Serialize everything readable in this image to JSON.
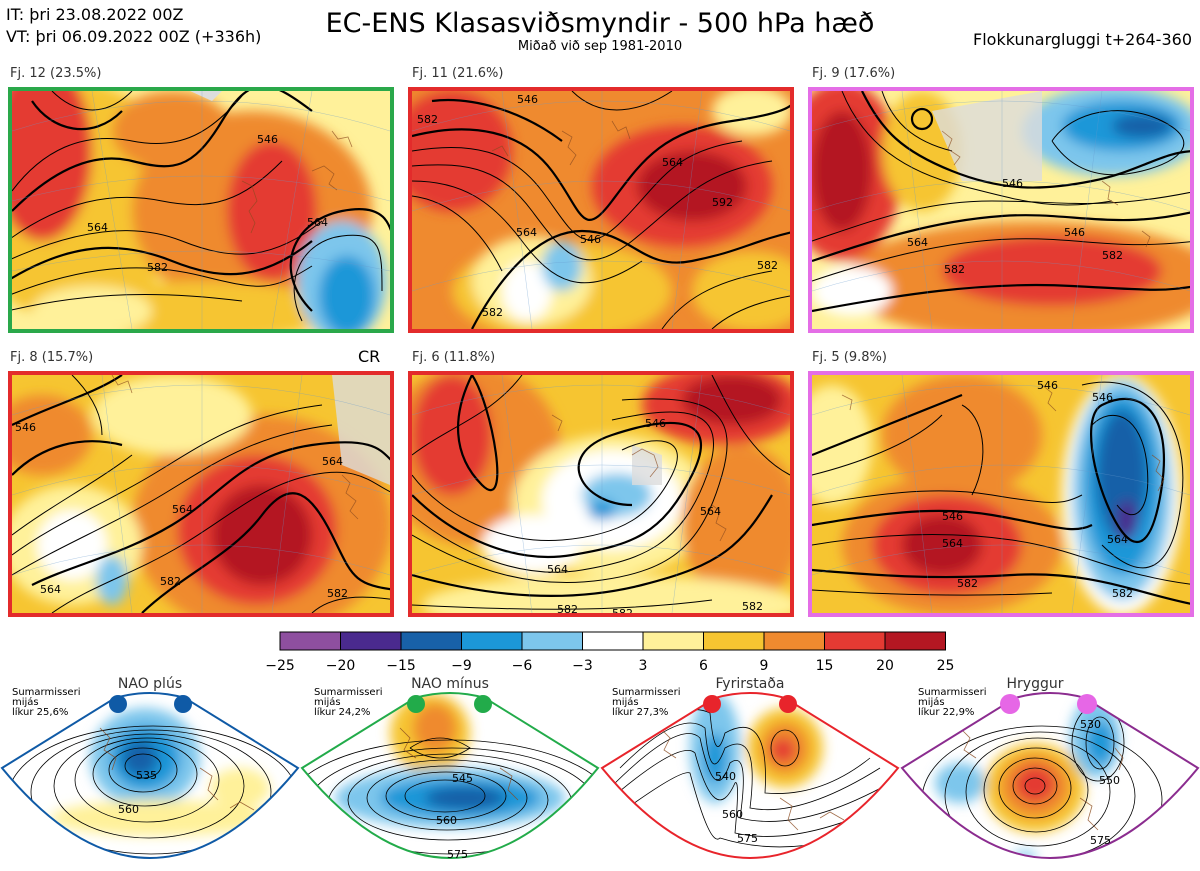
{
  "header": {
    "it_line": "IT: þri 23.08.2022 00Z",
    "vt_line": "VT: þri 06.09.2022 00Z  (+336h)",
    "title": "EC-ENS Klasasviðsmyndir - 500 hPa hæð",
    "subtitle": "Miðað við sep 1981-2010",
    "window": "Flokkunargluggi t+264-360"
  },
  "panels": [
    {
      "label": "Fj. 12 (23.5%)",
      "frame_color": "#2aa84a",
      "contours": [
        "546",
        "564",
        "564",
        "582"
      ]
    },
    {
      "label": "Fj. 11 (21.6%)",
      "frame_color": "#e32b2b",
      "contours": [
        "546",
        "564",
        "564",
        "582",
        "546",
        "582",
        "592",
        "582"
      ]
    },
    {
      "label": "Fj. 9 (17.6%)",
      "frame_color": "#e46ee6",
      "contours": [
        "546",
        "564",
        "582",
        "582",
        "546"
      ]
    },
    {
      "label": "Fj. 8 (15.7%)",
      "frame_color": "#e32b2b",
      "contours": [
        "564",
        "564",
        "582",
        "582",
        "564",
        "546"
      ],
      "extra": "CR"
    },
    {
      "label": "Fj. 6 (11.8%)",
      "frame_color": "#e32b2b",
      "contours": [
        "546",
        "564",
        "564",
        "582",
        "582",
        "582"
      ]
    },
    {
      "label": "Fj. 5 (9.8%)",
      "frame_color": "#e46ee6",
      "contours": [
        "546",
        "564",
        "582",
        "546",
        "564",
        "582",
        "546"
      ]
    }
  ],
  "colorbar": {
    "colors": [
      "#8e4f9f",
      "#4a2a8e",
      "#1861a8",
      "#1c97d8",
      "#7dc6ec",
      "#ffffff",
      "#fff19a",
      "#f6c531",
      "#ef8a2f",
      "#e43a33",
      "#b41722"
    ],
    "ticks": [
      "−25",
      "−20",
      "−15",
      "−9",
      "−6",
      "−3",
      "3",
      "6",
      "9",
      "15",
      "20",
      "25"
    ]
  },
  "regimes": [
    {
      "name": "NAO plús",
      "caption_line1": "Sumarmisseri",
      "caption_line2": "mijás",
      "caption_line3": "líkur 25,6%",
      "color": "#0f5aa6",
      "contours": [
        "535",
        "560"
      ]
    },
    {
      "name": "NAO mínus",
      "caption_line1": "Sumarmisseri",
      "caption_line2": "mijás",
      "caption_line3": "líkur 24,2%",
      "color": "#22ab4a",
      "contours": [
        "545",
        "560",
        "575"
      ]
    },
    {
      "name": "Fyrirstaða",
      "caption_line1": "Sumarmisseri",
      "caption_line2": "mijás",
      "caption_line3": "líkur 27,3%",
      "color": "#e8242b",
      "contours": [
        "540",
        "560",
        "575"
      ]
    },
    {
      "name": "Hryggur",
      "caption_line1": "Sumarmisseri",
      "caption_line2": "mijás",
      "caption_line3": "líkur 22,9%",
      "color": "#e667e6",
      "contours": [
        "530",
        "550",
        "575"
      ]
    }
  ]
}
